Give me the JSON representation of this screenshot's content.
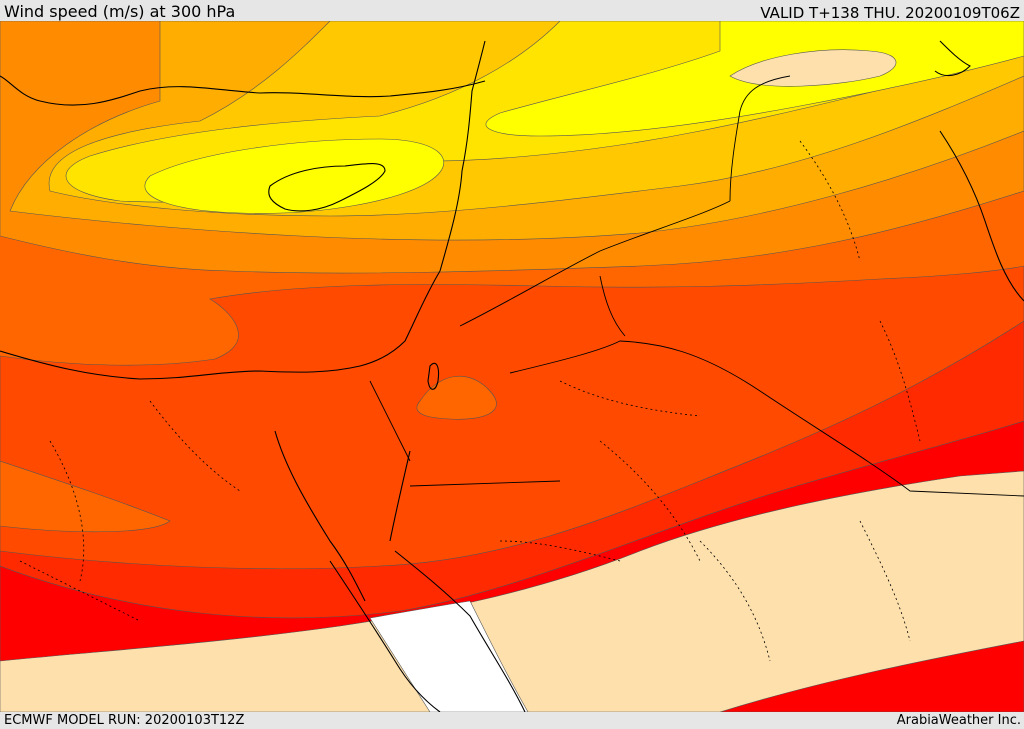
{
  "header": {
    "title": "Wind speed (m/s) at 300 hPa",
    "valid": "VALID T+138 THU. 20200109T06Z"
  },
  "footer": {
    "model_run": "ECMWF MODEL RUN: 20200103T12Z",
    "credit": "ArabiaWeather Inc."
  },
  "map": {
    "palette": {
      "weak": "#fde0ac",
      "yellow": "#ffff00",
      "yellow_orange": "#ffe400",
      "light_orange": "#ffc800",
      "orange": "#ffad00",
      "deep_orange": "#ff8c00",
      "dark_orange": "#ff6600",
      "orange_red": "#ff4a00",
      "red_orange": "#ff2a00",
      "red": "#ff0000",
      "calm": "#ffffff"
    }
  }
}
